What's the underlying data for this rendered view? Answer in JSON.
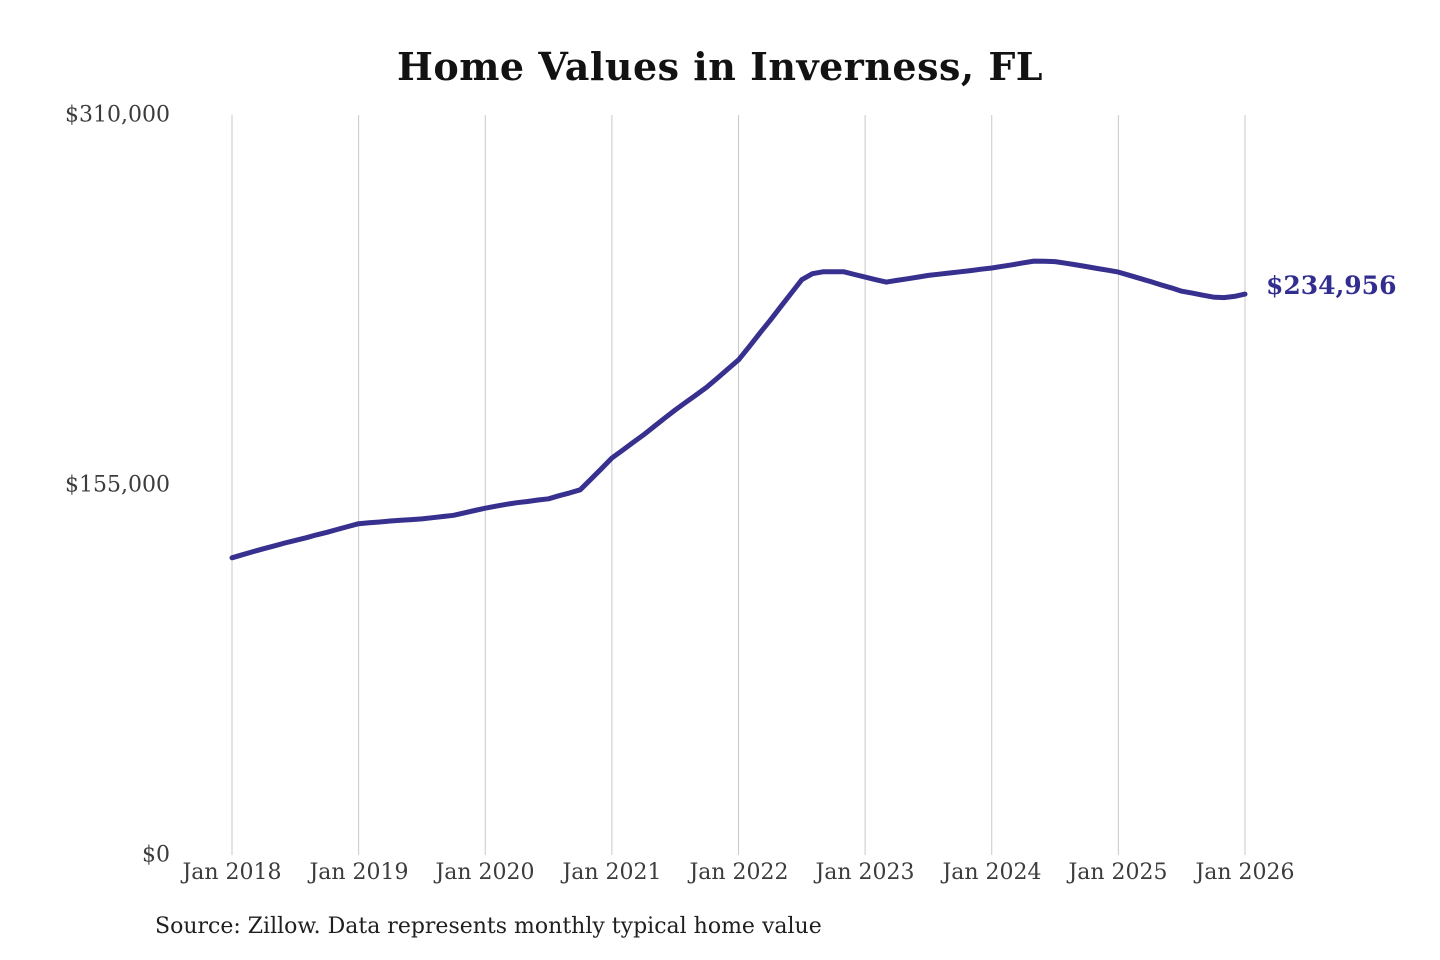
{
  "title": "Home Values in Inverness, FL",
  "annotations": {
    "end_value_label": "$234,956",
    "source_note": "Source: Zillow. Data represents monthly typical home value"
  },
  "colors": {
    "line": "#37308e",
    "end_label": "#322e8f",
    "gridline": "#c9c9c9",
    "axis_text": "#3c3c3c",
    "title_text": "#121212",
    "background": "#ffffff"
  },
  "chart_data": {
    "type": "line",
    "title": "Home Values in Inverness, FL",
    "xlabel": "",
    "ylabel": "",
    "x_range": "Jan 2018 - Jan 2026",
    "frequency": "monthly",
    "x_tick_labels": [
      "Jan 2018",
      "Jan 2019",
      "Jan 2020",
      "Jan 2021",
      "Jan 2022",
      "Jan 2023",
      "Jan 2024",
      "Jan 2025",
      "Jan 2026"
    ],
    "y_tick_labels": [
      "$0",
      "$155,000",
      "$310,000"
    ],
    "y_tick_values": [
      0,
      155000,
      310000
    ],
    "ylim": [
      0,
      310000
    ],
    "grid": "vertical year gridlines only",
    "legend": "none",
    "end_value": 234956,
    "series": [
      {
        "name": "Typical home value (Inverness, FL)",
        "start": "2018-01",
        "values": [
          124500,
          125800,
          127100,
          128300,
          129500,
          130700,
          131800,
          132900,
          134100,
          135200,
          136400,
          137600,
          138800,
          139200,
          139500,
          139900,
          140200,
          140500,
          140800,
          141300,
          141800,
          142300,
          143300,
          144300,
          145300,
          146100,
          146900,
          147600,
          148100,
          148700,
          149200,
          150500,
          151700,
          153000,
          157400,
          161800,
          166300,
          169500,
          172800,
          176000,
          179500,
          183000,
          186400,
          189600,
          192800,
          196000,
          199800,
          203600,
          207400,
          212900,
          218500,
          224000,
          229700,
          235400,
          241000,
          243500,
          244300,
          244300,
          244300,
          243200,
          242100,
          241000,
          240000,
          240700,
          241400,
          242100,
          242800,
          243300,
          243800,
          244300,
          244800,
          245400,
          245900,
          246600,
          247300,
          248100,
          248800,
          248700,
          248600,
          247900,
          247200,
          246500,
          245700,
          245000,
          244200,
          242900,
          241600,
          240300,
          238900,
          237600,
          236200,
          235400,
          234500,
          233700,
          233500,
          234000,
          234956
        ]
      }
    ]
  }
}
